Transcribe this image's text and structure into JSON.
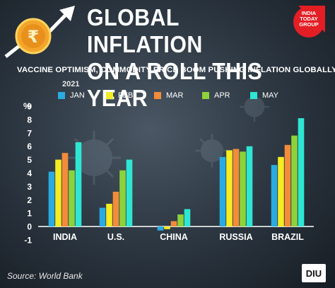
{
  "header": {
    "title_line1": "GLOBAL INFLATION",
    "title_line2": "ON A ROLL THIS YEAR",
    "subtitle": "VACCINE OPTIMISM, COMMODITY PRICE BOOM PUSHING INFLATION GLOBALLY"
  },
  "brand": {
    "line1": "INDIA",
    "line2": "TODAY",
    "line3": "GROUP",
    "color": "#e31e24"
  },
  "footer": {
    "source": "Source: World Bank",
    "badge": "DIU"
  },
  "icons": [
    "rupee-coin-icon",
    "rising-arrow-icon",
    "virus-icon"
  ],
  "chart_data": {
    "type": "bar",
    "title": "GLOBAL INFLATION ON A ROLL THIS YEAR",
    "subtitle": "VACCINE OPTIMISM, COMMODITY PRICE BOOM PUSHING INFLATION GLOBALLY",
    "legend_title": "2021",
    "ylabel": "%",
    "xlabel": "",
    "ylim": [
      -1,
      9
    ],
    "yticks": [
      -1,
      0,
      1,
      2,
      3,
      4,
      5,
      6,
      7,
      8,
      9
    ],
    "grid": false,
    "legend_placement": "top",
    "categories": [
      "INDIA",
      "U.S.",
      "CHINA",
      "RUSSIA",
      "BRAZIL"
    ],
    "series": [
      {
        "name": "JAN",
        "color": "#29abe2",
        "values": [
          4.1,
          1.4,
          -0.3,
          5.2,
          4.6
        ]
      },
      {
        "name": "FEB",
        "color": "#f5ec22",
        "values": [
          5.0,
          1.7,
          -0.2,
          5.7,
          5.2
        ]
      },
      {
        "name": "MAR",
        "color": "#f28c3a",
        "values": [
          5.5,
          2.6,
          0.4,
          5.8,
          6.1
        ]
      },
      {
        "name": "APR",
        "color": "#8cd23a",
        "values": [
          4.2,
          4.2,
          0.9,
          5.6,
          6.8
        ]
      },
      {
        "name": "MAY",
        "color": "#2ee6d2",
        "values": [
          6.3,
          5.0,
          1.3,
          6.0,
          8.1
        ]
      }
    ]
  }
}
